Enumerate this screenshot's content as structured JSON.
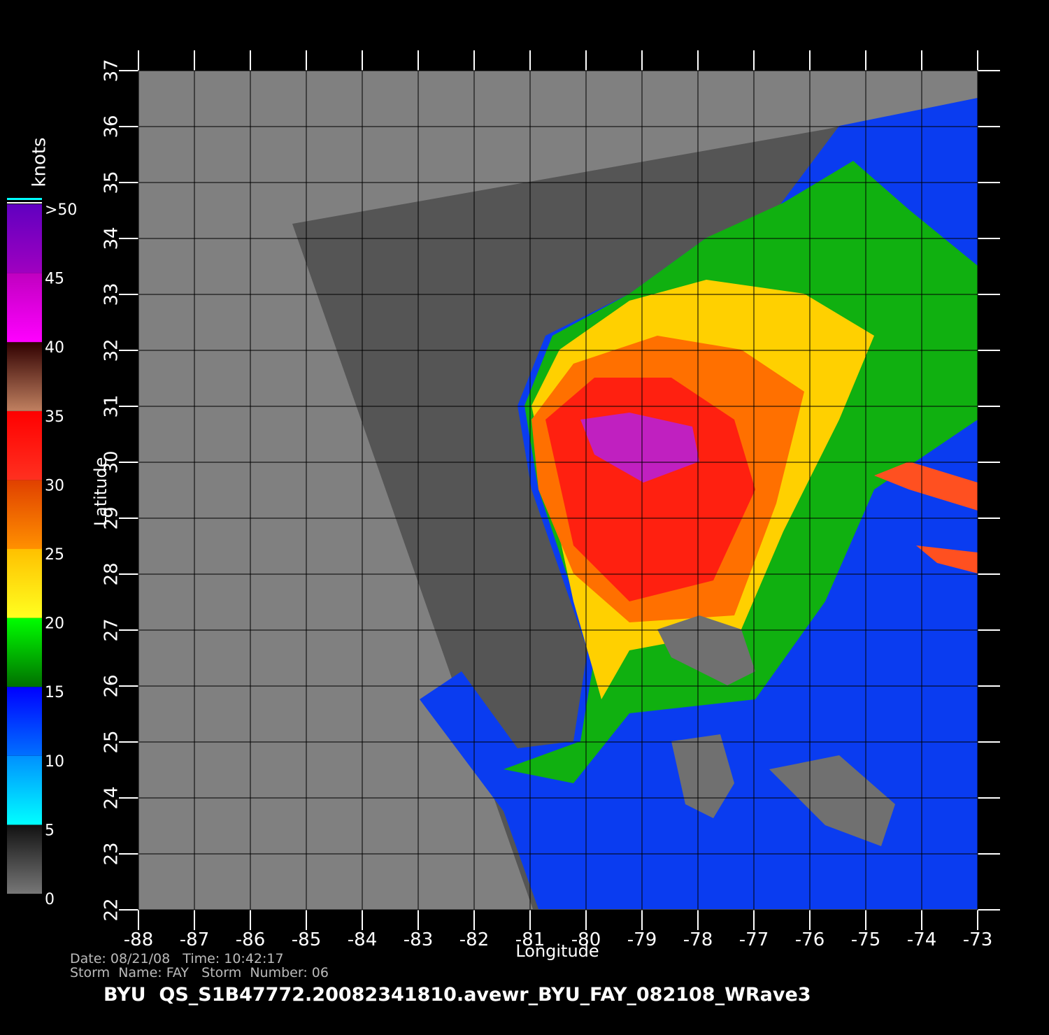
{
  "map": {
    "xlabel": "Longitude",
    "ylabel": "Latitude",
    "xlim": [
      -88,
      -73
    ],
    "ylim": [
      22,
      37
    ],
    "xticks": [
      -88,
      -87,
      -86,
      -85,
      -84,
      -83,
      -82,
      -81,
      -80,
      -79,
      -78,
      -77,
      -76,
      -75,
      -74,
      -73
    ],
    "yticks": [
      22,
      23,
      24,
      25,
      26,
      27,
      28,
      29,
      30,
      31,
      32,
      33,
      34,
      35,
      36,
      37
    ],
    "date_line": "Date: 08/21/08   Time: 10:42:17",
    "storm_line": "Storm  Name: FAY   Storm  Number: 06",
    "title": "BYU  QS_S1B47772.20082341810.avewr_BYU_FAY_082108_WRave3"
  },
  "colorbar": {
    "label": "knots",
    "ticks": [
      0,
      5,
      10,
      15,
      20,
      25,
      30,
      35,
      40,
      45,
      {
        "value": 50,
        "label": ">50"
      }
    ],
    "colors": [
      [
        "#777777",
        "#111111"
      ],
      [
        "#00ffff",
        "#0090ff"
      ],
      [
        "#0070ff",
        "#0000ff"
      ],
      [
        "#007000",
        "#00ff00"
      ],
      [
        "#ffff20",
        "#ffc000"
      ],
      [
        "#ff9000",
        "#e04000"
      ],
      [
        "#ff3020",
        "#ff0000"
      ],
      [
        "#c08060",
        "#300000"
      ],
      [
        "#ff00ff",
        "#c000c0"
      ],
      [
        "#a000c0",
        "#6000c0"
      ]
    ]
  }
}
